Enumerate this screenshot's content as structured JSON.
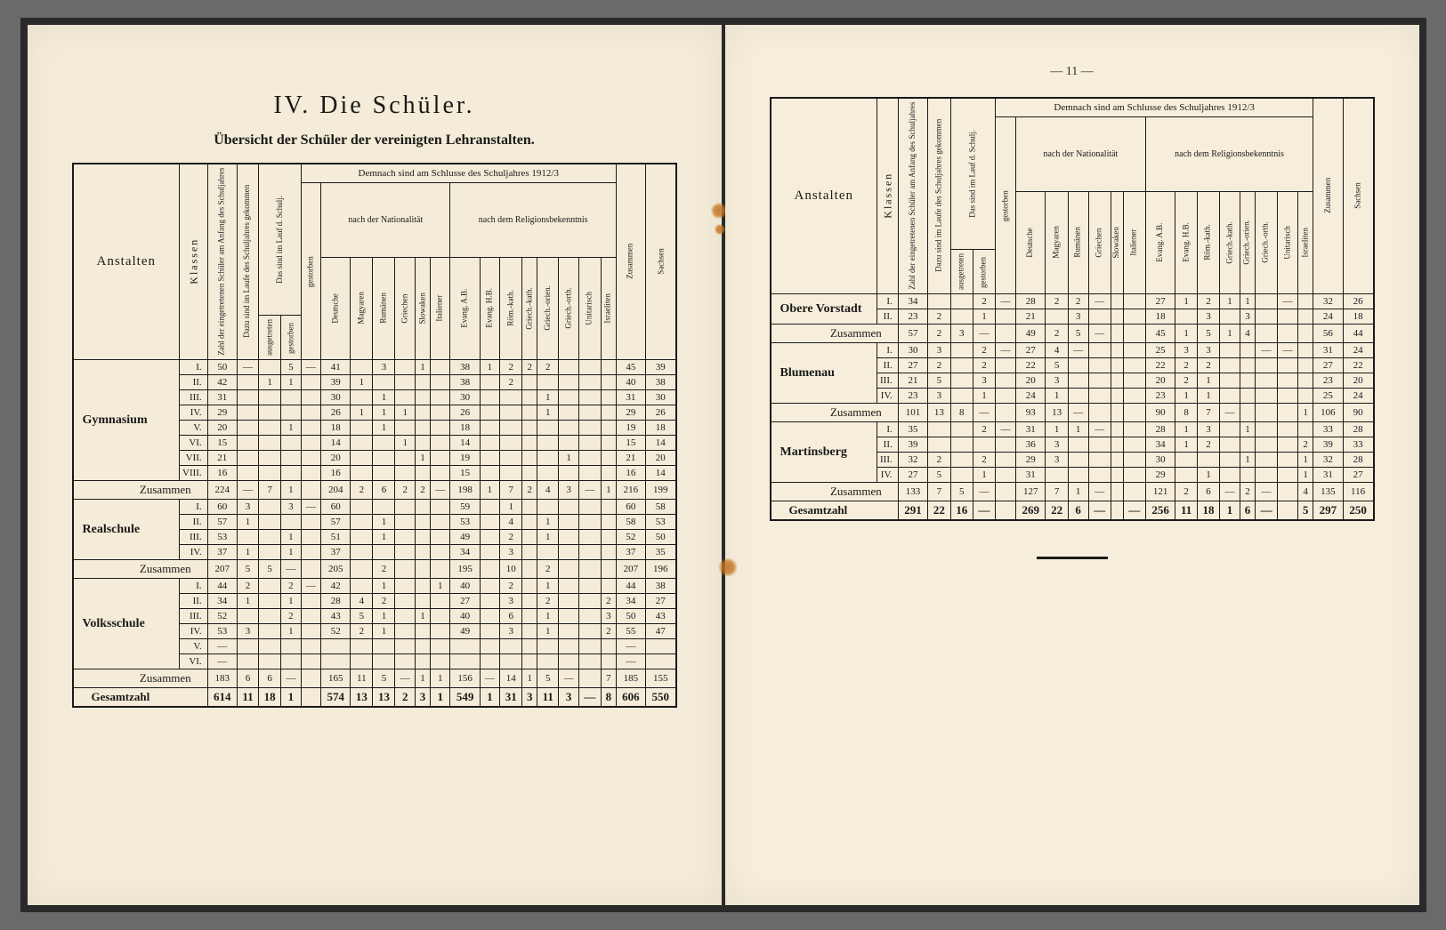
{
  "colors": {
    "page_bg": "#f4ecd8",
    "ink": "#1a1a1a",
    "border": "#1a1a1a",
    "desk": "#6a6a6a"
  },
  "typography": {
    "title_fontsize": 28,
    "subtitle_fontsize": 16,
    "body_fontsize": 11,
    "vertical_header_fontsize": 9
  },
  "left_page": {
    "page_number": "",
    "chapter": "IV. Die Schüler.",
    "subtitle": "Übersicht der Schüler der vereinigten Lehranstalten.",
    "table": {
      "anstalten_label": "Anstalten",
      "klassen_label": "Klassen",
      "supertop": "Demnach sind am Schlusse des Schuljahres 1912/3",
      "group_nat": "nach der Nationalität",
      "group_rel": "nach dem Religionsbekenntnis",
      "vcols_pre": [
        "Zahl der eingetretenen Schüler am Anfang des Schuljahres",
        "Dazu sind im Laufe des Schuljahres gekommen",
        "Das sind im Lauf d. Schulj.",
        "ausgetreten",
        "gestorben"
      ],
      "vcols_nat": [
        "Deutsche",
        "Magyaren",
        "Rumänen",
        "Griechen",
        "Slowaken",
        "Italiener"
      ],
      "vcols_rel": [
        "Evang. A.B.",
        "Evang. H.B.",
        "Röm.-kath.",
        "Griech.-kath.",
        "Griech.-orien.",
        "Griech.-orth.",
        "Unitarisch",
        "Israeliten"
      ],
      "vcols_post": [
        "Zusammen",
        "Sachsen"
      ],
      "zusammen_label": "Zusammen",
      "gesamt_label": "Gesamtzahl",
      "sections": [
        {
          "name": "Gymnasium",
          "klassen": [
            "I.",
            "II.",
            "III.",
            "IV.",
            "V.",
            "VI.",
            "VII.",
            "VIII."
          ],
          "rows": [
            [
              "50",
              "—",
              "",
              "5",
              "—",
              "41",
              "",
              "3",
              "",
              "1",
              "",
              "38",
              "1",
              "2",
              "2",
              "2",
              "",
              "",
              "",
              "45",
              "39"
            ],
            [
              "42",
              "",
              "1",
              "1",
              "",
              "39",
              "1",
              "",
              "",
              "",
              "",
              "38",
              "",
              "2",
              "",
              "",
              "",
              "",
              "",
              "40",
              "38"
            ],
            [
              "31",
              "",
              "",
              "",
              "",
              "30",
              "",
              "1",
              "",
              "",
              "",
              "30",
              "",
              "",
              "",
              "1",
              "",
              "",
              "",
              "31",
              "30"
            ],
            [
              "29",
              "",
              "",
              "",
              "",
              "26",
              "1",
              "1",
              "1",
              "",
              "",
              "26",
              "",
              "",
              "",
              "1",
              "",
              "",
              "",
              "29",
              "26"
            ],
            [
              "20",
              "",
              "",
              "1",
              "",
              "18",
              "",
              "1",
              "",
              "",
              "",
              "18",
              "",
              "",
              "",
              "",
              "",
              "",
              "",
              "19",
              "18"
            ],
            [
              "15",
              "",
              "",
              "",
              "",
              "14",
              "",
              "",
              "1",
              "",
              "",
              "14",
              "",
              "",
              "",
              "",
              "",
              "",
              "",
              "15",
              "14"
            ],
            [
              "21",
              "",
              "",
              "",
              "",
              "20",
              "",
              "",
              "",
              "1",
              "",
              "19",
              "",
              "",
              "",
              "",
              "1",
              "",
              "",
              "21",
              "20"
            ],
            [
              "16",
              "",
              "",
              "",
              "",
              "16",
              "",
              "",
              "",
              "",
              "",
              "15",
              "",
              "",
              "",
              "",
              "",
              "",
              "",
              "16",
              "14"
            ]
          ],
          "zusammen": [
            "224",
            "—",
            "7",
            "1",
            "",
            "204",
            "2",
            "6",
            "2",
            "2",
            "—",
            "198",
            "1",
            "7",
            "2",
            "4",
            "3",
            "—",
            "1",
            "216",
            "199"
          ]
        },
        {
          "name": "Realschule",
          "klassen": [
            "I.",
            "II.",
            "III.",
            "IV."
          ],
          "rows": [
            [
              "60",
              "3",
              "",
              "3",
              "—",
              "60",
              "",
              "",
              "",
              "",
              "",
              "59",
              "",
              "1",
              "",
              "",
              "",
              "",
              "",
              "60",
              "58"
            ],
            [
              "57",
              "1",
              "",
              "",
              "",
              "57",
              "",
              "1",
              "",
              "",
              "",
              "53",
              "",
              "4",
              "",
              "1",
              "",
              "",
              "",
              "58",
              "53"
            ],
            [
              "53",
              "",
              "",
              "1",
              "",
              "51",
              "",
              "1",
              "",
              "",
              "",
              "49",
              "",
              "2",
              "",
              "1",
              "",
              "",
              "",
              "52",
              "50"
            ],
            [
              "37",
              "1",
              "",
              "1",
              "",
              "37",
              "",
              "",
              "",
              "",
              "",
              "34",
              "",
              "3",
              "",
              "",
              "",
              "",
              "",
              "37",
              "35"
            ]
          ],
          "zusammen": [
            "207",
            "5",
            "5",
            "—",
            "",
            "205",
            "",
            "2",
            "",
            "",
            "",
            "195",
            "",
            "10",
            "",
            "2",
            "",
            "",
            "",
            "207",
            "196"
          ]
        },
        {
          "name": "Volksschule",
          "klassen": [
            "I.",
            "II.",
            "III.",
            "IV.",
            "V.",
            "VI."
          ],
          "rows": [
            [
              "44",
              "2",
              "",
              "2",
              "—",
              "42",
              "",
              "1",
              "",
              "",
              "1",
              "40",
              "",
              "2",
              "",
              "1",
              "",
              "",
              "",
              "44",
              "38"
            ],
            [
              "34",
              "1",
              "",
              "1",
              "",
              "28",
              "4",
              "2",
              "",
              "",
              "",
              "27",
              "",
              "3",
              "",
              "2",
              "",
              "",
              "2",
              "34",
              "27"
            ],
            [
              "52",
              "",
              "",
              "2",
              "",
              "43",
              "5",
              "1",
              "",
              "1",
              "",
              "40",
              "",
              "6",
              "",
              "1",
              "",
              "",
              "3",
              "50",
              "43"
            ],
            [
              "53",
              "3",
              "",
              "1",
              "",
              "52",
              "2",
              "1",
              "",
              "",
              "",
              "49",
              "",
              "3",
              "",
              "1",
              "",
              "",
              "2",
              "55",
              "47"
            ],
            [
              "—",
              "",
              "",
              "",
              "",
              "",
              "",
              "",
              "",
              "",
              "",
              "",
              "",
              "",
              "",
              "",
              "",
              "",
              "",
              "—",
              ""
            ],
            [
              "—",
              "",
              "",
              "",
              "",
              "",
              "",
              "",
              "",
              "",
              "",
              "",
              "",
              "",
              "",
              "",
              "",
              "",
              "",
              "—",
              ""
            ]
          ],
          "zusammen": [
            "183",
            "6",
            "6",
            "—",
            "",
            "165",
            "11",
            "5",
            "—",
            "1",
            "1",
            "156",
            "—",
            "14",
            "1",
            "5",
            "—",
            "",
            "7",
            "185",
            "155"
          ]
        }
      ],
      "gesamt": [
        "614",
        "11",
        "18",
        "1",
        "",
        "574",
        "13",
        "13",
        "2",
        "3",
        "1",
        "549",
        "1",
        "31",
        "3",
        "11",
        "3",
        "—",
        "8",
        "606",
        "550"
      ]
    }
  },
  "right_page": {
    "page_number": "— 11 —",
    "table": {
      "anstalten_label": "Anstalten",
      "klassen_label": "Klassen",
      "supertop": "Demnach sind am Schlusse des Schuljahres 1912/3",
      "group_nat": "nach der Nationalität",
      "group_rel": "nach dem Religionsbekenntnis",
      "vcols_pre": [
        "Zahl der eingetretenen Schüler am Anfang des Schuljahres",
        "Dazu sind im Laufe des Schuljahres gekommen",
        "Das sind im Lauf d. Schulj.",
        "ausgetreten",
        "gestorben"
      ],
      "vcols_nat": [
        "Deutsche",
        "Magyaren",
        "Rumänen",
        "Griechen",
        "Slowaken",
        "Italiener"
      ],
      "vcols_rel": [
        "Evang. A.B.",
        "Evang. H.B.",
        "Röm.-kath.",
        "Griech.-kath.",
        "Griech.-orien.",
        "Griech.-orth.",
        "Unitarisch",
        "Israeliten"
      ],
      "vcols_post": [
        "Zusammen",
        "Sachsen"
      ],
      "zusammen_label": "Zusammen",
      "gesamt_label": "Gesamtzahl",
      "sections": [
        {
          "name": "Obere Vorstadt",
          "klassen": [
            "I.",
            "II."
          ],
          "rows": [
            [
              "34",
              "",
              "",
              "2",
              "—",
              "28",
              "2",
              "2",
              "—",
              "",
              "",
              "27",
              "1",
              "2",
              "1",
              "1",
              "",
              "—",
              "",
              "32",
              "26"
            ],
            [
              "23",
              "2",
              "",
              "1",
              "",
              "21",
              "",
              "3",
              "",
              "",
              "",
              "18",
              "",
              "3",
              "",
              "3",
              "",
              "",
              "",
              "24",
              "18"
            ]
          ],
          "zusammen": [
            "57",
            "2",
            "3",
            "—",
            "",
            "49",
            "2",
            "5",
            "—",
            "",
            "",
            "45",
            "1",
            "5",
            "1",
            "4",
            "",
            "",
            "",
            "56",
            "44"
          ]
        },
        {
          "name": "Blumenau",
          "klassen": [
            "I.",
            "II.",
            "III.",
            "IV."
          ],
          "rows": [
            [
              "30",
              "3",
              "",
              "2",
              "—",
              "27",
              "4",
              "—",
              "",
              "",
              "",
              "25",
              "3",
              "3",
              "",
              "",
              "—",
              "—",
              "",
              "31",
              "24"
            ],
            [
              "27",
              "2",
              "",
              "2",
              "",
              "22",
              "5",
              "",
              "",
              "",
              "",
              "22",
              "2",
              "2",
              "",
              "",
              "",
              "",
              "",
              "27",
              "22"
            ],
            [
              "21",
              "5",
              "",
              "3",
              "",
              "20",
              "3",
              "",
              "",
              "",
              "",
              "20",
              "2",
              "1",
              "",
              "",
              "",
              "",
              "",
              "23",
              "20"
            ],
            [
              "23",
              "3",
              "",
              "1",
              "",
              "24",
              "1",
              "",
              "",
              "",
              "",
              "23",
              "1",
              "1",
              "",
              "",
              "",
              "",
              "",
              "25",
              "24"
            ]
          ],
          "zusammen": [
            "101",
            "13",
            "8",
            "—",
            "",
            "93",
            "13",
            "—",
            "",
            "",
            "",
            "90",
            "8",
            "7",
            "—",
            "",
            "",
            "",
            "1",
            "106",
            "90"
          ]
        },
        {
          "name": "Martinsberg",
          "klassen": [
            "I.",
            "II.",
            "III.",
            "IV."
          ],
          "rows": [
            [
              "35",
              "",
              "",
              "2",
              "—",
              "31",
              "1",
              "1",
              "—",
              "",
              "",
              "28",
              "1",
              "3",
              "",
              "1",
              "",
              "",
              "",
              "33",
              "28"
            ],
            [
              "39",
              "",
              "",
              "",
              "",
              "36",
              "3",
              "",
              "",
              "",
              "",
              "34",
              "1",
              "2",
              "",
              "",
              "",
              "",
              "2",
              "39",
              "33"
            ],
            [
              "32",
              "2",
              "",
              "2",
              "",
              "29",
              "3",
              "",
              "",
              "",
              "",
              "30",
              "",
              "",
              "",
              "1",
              "",
              "",
              "1",
              "32",
              "28"
            ],
            [
              "27",
              "5",
              "",
              "1",
              "",
              "31",
              "",
              "",
              "",
              "",
              "",
              "29",
              "",
              "1",
              "",
              "",
              "",
              "",
              "1",
              "31",
              "27"
            ]
          ],
          "zusammen": [
            "133",
            "7",
            "5",
            "—",
            "",
            "127",
            "7",
            "1",
            "—",
            "",
            "",
            "121",
            "2",
            "6",
            "—",
            "2",
            "—",
            "",
            "4",
            "135",
            "116"
          ]
        }
      ],
      "gesamt": [
        "291",
        "22",
        "16",
        "—",
        "",
        "269",
        "22",
        "6",
        "—",
        "",
        "—",
        "256",
        "11",
        "18",
        "1",
        "6",
        "—",
        "",
        "5",
        "297",
        "250"
      ]
    }
  }
}
